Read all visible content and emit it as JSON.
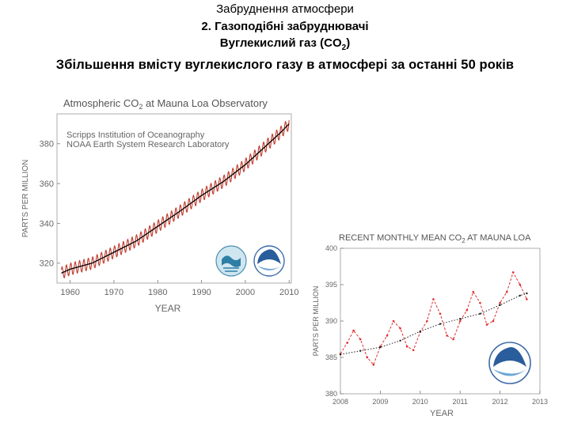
{
  "header": {
    "line1": "Забруднення атмосфери",
    "line2": "2. Газоподібні забруднювачі",
    "line3_main": "Вуглекислий газ (CO",
    "line3_sub": "2",
    "line3_end": ")",
    "subtitle": "Збільшення вмісту вуглекислого газу в атмосфері за останні 50 років"
  },
  "chart_data": [
    {
      "type": "line",
      "title": "Atmospheric CO2 at Mauna Loa Observatory",
      "title_main": "Atmospheric CO",
      "title_sub": "2",
      "title_end": " at Mauna Loa Observatory",
      "source_lines": [
        "Scripps Institution of Oceanography",
        "NOAA Earth System Research Laboratory"
      ],
      "xlabel": "YEAR",
      "ylabel": "PARTS PER MILLION",
      "xlim": [
        1957,
        2010.5
      ],
      "ylim": [
        310,
        395
      ],
      "xticks": [
        1960,
        1970,
        1980,
        1990,
        2000,
        2010
      ],
      "yticks": [
        320,
        340,
        360,
        380
      ],
      "grid": false,
      "series": [
        {
          "color": "#c0392b",
          "style": "monthly-seasonal",
          "seasonal_amplitude_ppm": 3,
          "x": [
            1958,
            1960,
            1965,
            1970,
            1975,
            1980,
            1985,
            1990,
            1995,
            2000,
            2005,
            2008,
            2010
          ],
          "y": [
            315,
            317,
            320,
            325.5,
            331,
            338.5,
            346,
            354,
            361,
            369.5,
            379.5,
            385.5,
            390
          ]
        },
        {
          "color": "#000000",
          "style": "annual-trend",
          "x": [
            1958,
            1960,
            1965,
            1970,
            1975,
            1980,
            1985,
            1990,
            1995,
            2000,
            2005,
            2008,
            2010
          ],
          "y": [
            315,
            317,
            320,
            325.5,
            331,
            338.5,
            346,
            354,
            361,
            369.5,
            379.5,
            385.5,
            390
          ]
        }
      ],
      "logos": [
        "scripps-logo",
        "noaa-logo"
      ]
    },
    {
      "type": "line",
      "title": "RECENT MONTHLY MEAN CO2 AT MAUNA LOA",
      "title_main": "RECENT MONTHLY MEAN CO",
      "title_sub": "2",
      "title_end": " AT MAUNA LOA",
      "xlabel": "YEAR",
      "ylabel": "PARTS PER MILLION",
      "xlim": [
        2008,
        2013
      ],
      "ylim": [
        380,
        400
      ],
      "xticks": [
        2008,
        2009,
        2010,
        2011,
        2012,
        2013
      ],
      "yticks": [
        380,
        385,
        390,
        395,
        400
      ],
      "grid": false,
      "series": [
        {
          "color": "#e03030",
          "style": "dashed-points",
          "x": [
            2008.0,
            2008.17,
            2008.33,
            2008.5,
            2008.67,
            2008.83,
            2009.0,
            2009.17,
            2009.33,
            2009.5,
            2009.67,
            2009.83,
            2010.0,
            2010.17,
            2010.33,
            2010.5,
            2010.67,
            2010.83,
            2011.0,
            2011.17,
            2011.33,
            2011.5,
            2011.67,
            2011.83,
            2012.0,
            2012.17,
            2012.33,
            2012.5,
            2012.67
          ],
          "y": [
            385.5,
            387,
            388.7,
            387.5,
            385,
            384,
            386.5,
            388,
            390,
            389,
            386.5,
            386,
            388.5,
            390,
            393,
            391,
            388,
            387.5,
            390,
            391.5,
            394,
            392.5,
            389.5,
            390,
            392.5,
            394,
            396.7,
            395,
            393
          ]
        },
        {
          "color": "#222222",
          "style": "dotted-trend",
          "x": [
            2008.0,
            2008.5,
            2009.0,
            2009.5,
            2010.0,
            2010.5,
            2011.0,
            2011.5,
            2012.0,
            2012.5,
            2012.67
          ],
          "y": [
            385.4,
            385.9,
            386.4,
            387.3,
            388.6,
            389.6,
            390.3,
            391.0,
            392.2,
            393.5,
            393.8
          ]
        }
      ],
      "logos": [
        "noaa-logo"
      ]
    }
  ]
}
